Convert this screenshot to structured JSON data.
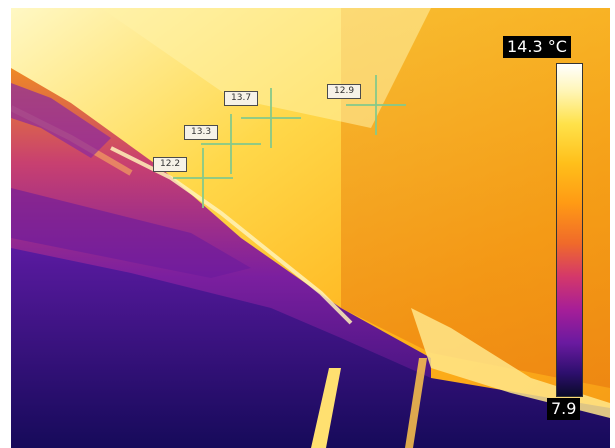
{
  "scale": {
    "max_label": "14.3 °C",
    "min_label": "7.9"
  },
  "spots": [
    {
      "label": "13.7"
    },
    {
      "label": "12.9"
    },
    {
      "label": "13.3"
    },
    {
      "label": "12.2"
    }
  ],
  "palette": {
    "hot": "#fff6b8",
    "warm": "#ffbf1a",
    "mid": "#f06a2a",
    "cool": "#7a1f9e",
    "cold": "#0a0a2a"
  }
}
